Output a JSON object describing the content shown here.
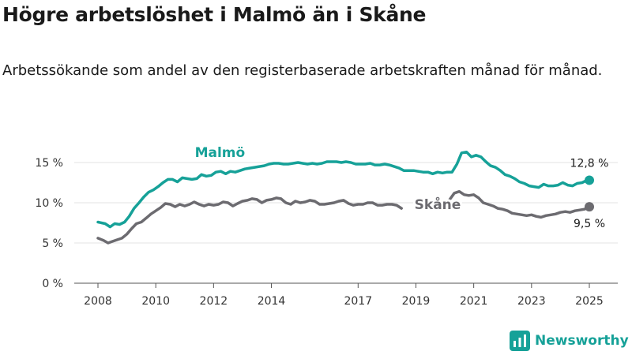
{
  "title": "Högre arbetslöshet i Malmö än i Skåne",
  "subtitle": "Arbetssökande som andel av den registerbaserade arbetskraften månad för månad.",
  "brand": {
    "name": "Newsworthy",
    "color": "#16a198"
  },
  "chart_data": {
    "type": "line",
    "title": "Högre arbetslöshet i Malmö än i Skåne",
    "xlabel": "",
    "ylabel": "",
    "ylim": [
      0,
      15
    ],
    "yticks": [
      0,
      5,
      10,
      15
    ],
    "ytick_labels": [
      "0 %",
      "5 %",
      "10 %",
      "15 %"
    ],
    "xticks": [
      2008,
      2010,
      2012,
      2014,
      2017,
      2019,
      2021,
      2023,
      2025
    ],
    "xlim": [
      2008,
      2025
    ],
    "grid": "horizontal",
    "series": [
      {
        "name": "Malmö",
        "color": "#16a198",
        "end_label": "12,8 %",
        "points": [
          [
            2008.0,
            7.6
          ],
          [
            2008.25,
            7.4
          ],
          [
            2008.42,
            7.0
          ],
          [
            2008.58,
            7.4
          ],
          [
            2008.75,
            7.3
          ],
          [
            2008.92,
            7.6
          ],
          [
            2009.08,
            8.3
          ],
          [
            2009.25,
            9.3
          ],
          [
            2009.42,
            10.0
          ],
          [
            2009.58,
            10.7
          ],
          [
            2009.75,
            11.3
          ],
          [
            2009.92,
            11.6
          ],
          [
            2010.08,
            12.0
          ],
          [
            2010.25,
            12.5
          ],
          [
            2010.42,
            12.9
          ],
          [
            2010.58,
            12.9
          ],
          [
            2010.75,
            12.6
          ],
          [
            2010.92,
            13.1
          ],
          [
            2011.08,
            13.0
          ],
          [
            2011.25,
            12.9
          ],
          [
            2011.42,
            13.0
          ],
          [
            2011.58,
            13.5
          ],
          [
            2011.75,
            13.3
          ],
          [
            2011.92,
            13.4
          ],
          [
            2012.08,
            13.8
          ],
          [
            2012.25,
            13.9
          ],
          [
            2012.42,
            13.6
          ],
          [
            2012.58,
            13.9
          ],
          [
            2012.75,
            13.8
          ],
          [
            2012.92,
            14.0
          ],
          [
            2013.08,
            14.2
          ],
          [
            2013.25,
            14.3
          ],
          [
            2013.42,
            14.4
          ],
          [
            2013.58,
            14.5
          ],
          [
            2013.75,
            14.6
          ],
          [
            2013.92,
            14.8
          ],
          [
            2014.08,
            14.9
          ],
          [
            2014.25,
            14.9
          ],
          [
            2014.42,
            14.8
          ],
          [
            2014.58,
            14.8
          ],
          [
            2014.75,
            14.9
          ],
          [
            2014.92,
            15.0
          ],
          [
            2015.08,
            14.9
          ],
          [
            2015.25,
            14.8
          ],
          [
            2015.42,
            14.9
          ],
          [
            2015.58,
            14.8
          ],
          [
            2015.75,
            14.9
          ],
          [
            2015.92,
            15.1
          ],
          [
            2016.08,
            15.1
          ],
          [
            2016.25,
            15.1
          ],
          [
            2016.42,
            15.0
          ],
          [
            2016.58,
            15.1
          ],
          [
            2016.75,
            15.0
          ],
          [
            2016.92,
            14.8
          ],
          [
            2017.08,
            14.8
          ],
          [
            2017.25,
            14.8
          ],
          [
            2017.42,
            14.9
          ],
          [
            2017.58,
            14.7
          ],
          [
            2017.75,
            14.7
          ],
          [
            2017.92,
            14.8
          ],
          [
            2018.08,
            14.7
          ],
          [
            2018.25,
            14.5
          ],
          [
            2018.42,
            14.3
          ],
          [
            2018.58,
            14.0
          ],
          [
            2018.75,
            14.0
          ],
          [
            2018.92,
            14.0
          ],
          [
            2019.08,
            13.9
          ],
          [
            2019.25,
            13.8
          ],
          [
            2019.42,
            13.8
          ],
          [
            2019.58,
            13.6
          ],
          [
            2019.75,
            13.8
          ],
          [
            2019.92,
            13.7
          ],
          [
            2020.08,
            13.8
          ],
          [
            2020.25,
            13.8
          ],
          [
            2020.42,
            14.8
          ],
          [
            2020.58,
            16.2
          ],
          [
            2020.75,
            16.3
          ],
          [
            2020.92,
            15.7
          ],
          [
            2021.08,
            15.9
          ],
          [
            2021.25,
            15.7
          ],
          [
            2021.42,
            15.1
          ],
          [
            2021.58,
            14.6
          ],
          [
            2021.75,
            14.4
          ],
          [
            2021.92,
            14.0
          ],
          [
            2022.08,
            13.5
          ],
          [
            2022.25,
            13.3
          ],
          [
            2022.42,
            13.0
          ],
          [
            2022.58,
            12.6
          ],
          [
            2022.75,
            12.4
          ],
          [
            2022.92,
            12.1
          ],
          [
            2023.08,
            12.0
          ],
          [
            2023.25,
            11.9
          ],
          [
            2023.42,
            12.3
          ],
          [
            2023.58,
            12.1
          ],
          [
            2023.75,
            12.1
          ],
          [
            2023.92,
            12.2
          ],
          [
            2024.08,
            12.5
          ],
          [
            2024.25,
            12.2
          ],
          [
            2024.42,
            12.1
          ],
          [
            2024.58,
            12.4
          ],
          [
            2024.75,
            12.5
          ],
          [
            2024.92,
            12.8
          ],
          [
            2025.0,
            12.8
          ]
        ]
      },
      {
        "name": "Skåne",
        "color": "#6c6b70",
        "end_label": "9,5 %",
        "points": [
          [
            2008.0,
            5.6
          ],
          [
            2008.2,
            5.3
          ],
          [
            2008.35,
            5.0
          ],
          [
            2008.5,
            5.2
          ],
          [
            2008.67,
            5.4
          ],
          [
            2008.83,
            5.6
          ],
          [
            2009.0,
            6.1
          ],
          [
            2009.17,
            6.8
          ],
          [
            2009.33,
            7.4
          ],
          [
            2009.5,
            7.6
          ],
          [
            2009.67,
            8.1
          ],
          [
            2009.83,
            8.6
          ],
          [
            2010.0,
            9.0
          ],
          [
            2010.17,
            9.4
          ],
          [
            2010.33,
            9.9
          ],
          [
            2010.5,
            9.8
          ],
          [
            2010.67,
            9.5
          ],
          [
            2010.83,
            9.8
          ],
          [
            2011.0,
            9.6
          ],
          [
            2011.17,
            9.8
          ],
          [
            2011.33,
            10.1
          ],
          [
            2011.5,
            9.8
          ],
          [
            2011.67,
            9.6
          ],
          [
            2011.83,
            9.8
          ],
          [
            2012.0,
            9.7
          ],
          [
            2012.17,
            9.8
          ],
          [
            2012.33,
            10.1
          ],
          [
            2012.5,
            10.0
          ],
          [
            2012.67,
            9.6
          ],
          [
            2012.83,
            9.9
          ],
          [
            2013.0,
            10.2
          ],
          [
            2013.17,
            10.3
          ],
          [
            2013.33,
            10.5
          ],
          [
            2013.5,
            10.4
          ],
          [
            2013.67,
            10.0
          ],
          [
            2013.83,
            10.3
          ],
          [
            2014.0,
            10.4
          ],
          [
            2014.17,
            10.6
          ],
          [
            2014.33,
            10.5
          ],
          [
            2014.5,
            10.0
          ],
          [
            2014.67,
            9.8
          ],
          [
            2014.83,
            10.2
          ],
          [
            2015.0,
            10.0
          ],
          [
            2015.17,
            10.1
          ],
          [
            2015.33,
            10.3
          ],
          [
            2015.5,
            10.2
          ],
          [
            2015.67,
            9.8
          ],
          [
            2015.83,
            9.8
          ],
          [
            2016.0,
            9.9
          ],
          [
            2016.17,
            10.0
          ],
          [
            2016.33,
            10.2
          ],
          [
            2016.5,
            10.3
          ],
          [
            2016.67,
            9.9
          ],
          [
            2016.83,
            9.7
          ],
          [
            2017.0,
            9.8
          ],
          [
            2017.17,
            9.8
          ],
          [
            2017.33,
            10.0
          ],
          [
            2017.5,
            10.0
          ],
          [
            2017.67,
            9.7
          ],
          [
            2017.83,
            9.7
          ],
          [
            2018.0,
            9.8
          ],
          [
            2018.17,
            9.8
          ],
          [
            2018.33,
            9.7
          ],
          [
            2018.5,
            9.3
          ],
          [
            null,
            null
          ],
          [
            2020.0,
            9.4
          ],
          [
            2020.17,
            10.4
          ],
          [
            2020.33,
            11.2
          ],
          [
            2020.5,
            11.4
          ],
          [
            2020.67,
            11.0
          ],
          [
            2020.83,
            10.9
          ],
          [
            2021.0,
            11.0
          ],
          [
            2021.17,
            10.6
          ],
          [
            2021.33,
            10.0
          ],
          [
            2021.5,
            9.8
          ],
          [
            2021.67,
            9.6
          ],
          [
            2021.83,
            9.3
          ],
          [
            2022.0,
            9.2
          ],
          [
            2022.17,
            9.0
          ],
          [
            2022.33,
            8.7
          ],
          [
            2022.5,
            8.6
          ],
          [
            2022.67,
            8.5
          ],
          [
            2022.83,
            8.4
          ],
          [
            2023.0,
            8.5
          ],
          [
            2023.17,
            8.3
          ],
          [
            2023.33,
            8.2
          ],
          [
            2023.5,
            8.4
          ],
          [
            2023.67,
            8.5
          ],
          [
            2023.83,
            8.6
          ],
          [
            2024.0,
            8.8
          ],
          [
            2024.17,
            8.9
          ],
          [
            2024.33,
            8.8
          ],
          [
            2024.5,
            9.0
          ],
          [
            2024.67,
            9.1
          ],
          [
            2024.83,
            9.2
          ],
          [
            2025.0,
            9.5
          ]
        ]
      }
    ]
  }
}
